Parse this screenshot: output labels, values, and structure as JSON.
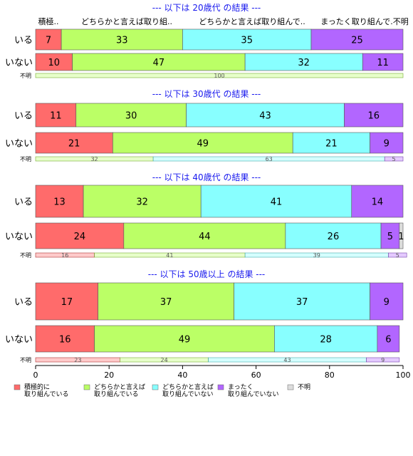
{
  "chart_data": {
    "type": "bar",
    "orientation": "horizontal",
    "stacked": "percent",
    "xlim": [
      0,
      100
    ],
    "x_ticks": [
      "0",
      "20",
      "40",
      "60",
      "80",
      "100"
    ],
    "column_headers": [
      "積極..",
      "どちらかと言えば取り組..",
      "どちらかと言えば取り組んで..",
      "まったく取り組んで.不明"
    ],
    "legend": {
      "placement": "bottom-left",
      "entries": [
        {
          "label": "積極的に\n取り組んでいる",
          "color": "#FF6B6B"
        },
        {
          "label": "どちらかと言えば\n取り組んでいる",
          "color": "#BBFF66"
        },
        {
          "label": "どちらかと言えば\n取り組んでいない",
          "color": "#88FFFF"
        },
        {
          "label": "まったく\n取り組んでいない",
          "color": "#B266FF"
        },
        {
          "label": "不明",
          "color": "#DDDDDD"
        }
      ]
    },
    "panels": [
      {
        "title": "--- 以下は 20歳代 の結果 ---",
        "rows": [
          {
            "label": "いる",
            "values": [
              7,
              33,
              35,
              25,
              0
            ],
            "value_labels": [
              "7",
              "33",
              "35",
              "25",
              ""
            ]
          },
          {
            "label": "いない",
            "values": [
              10,
              47,
              32,
              11,
              0
            ],
            "value_labels": [
              "10",
              "47",
              "32",
              "11",
              ""
            ]
          }
        ],
        "unknown_row": {
          "label": "不明",
          "values": [
            0,
            100,
            0,
            0,
            0
          ],
          "value_labels": [
            "",
            "100",
            "",
            "",
            ""
          ]
        }
      },
      {
        "title": "--- 以下は 30歳代 の結果 ---",
        "rows": [
          {
            "label": "いる",
            "values": [
              11,
              30,
              43,
              16,
              0
            ],
            "value_labels": [
              "11",
              "30",
              "43",
              "16",
              ""
            ]
          },
          {
            "label": "いない",
            "values": [
              21,
              49,
              21,
              9,
              0
            ],
            "value_labels": [
              "21",
              "49",
              "21",
              "9",
              ""
            ]
          }
        ],
        "unknown_row": {
          "label": "不明",
          "values": [
            0,
            32,
            63,
            5,
            0
          ],
          "value_labels": [
            "",
            "32",
            "63",
            "5",
            ""
          ]
        }
      },
      {
        "title": "--- 以下は 40歳代 の結果 ---",
        "rows": [
          {
            "label": "いる",
            "values": [
              13,
              32,
              41,
              14,
              0
            ],
            "value_labels": [
              "13",
              "32",
              "41",
              "14",
              ""
            ]
          },
          {
            "label": "いない",
            "values": [
              24,
              44,
              26,
              5,
              1
            ],
            "value_labels": [
              "24",
              "44",
              "26",
              "5",
              "1"
            ]
          }
        ],
        "unknown_row": {
          "label": "不明",
          "values": [
            16,
            41,
            39,
            5,
            0
          ],
          "value_labels": [
            "16",
            "41",
            "39",
            "5",
            ""
          ]
        }
      },
      {
        "title": "--- 以下は 50歳以上 の結果 ---",
        "rows": [
          {
            "label": "いる",
            "values": [
              17,
              37,
              37,
              9,
              0
            ],
            "value_labels": [
              "17",
              "37",
              "37",
              "9",
              ""
            ]
          },
          {
            "label": "いない",
            "values": [
              16,
              49,
              28,
              6,
              0
            ],
            "value_labels": [
              "16",
              "49",
              "28",
              "6",
              ""
            ]
          }
        ],
        "unknown_row": {
          "label": "不明",
          "values": [
            23,
            24,
            43,
            9,
            0
          ],
          "value_labels": [
            "23",
            "24",
            "43",
            "9",
            ""
          ]
        }
      }
    ]
  }
}
